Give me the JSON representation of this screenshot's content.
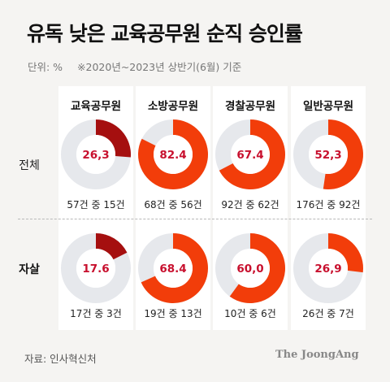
{
  "title": "유독 낮은 교육공무원 순직 승인률",
  "unit_label": "단위: %",
  "period_note": "※2020년~2023년 상반기(6월) 기준",
  "source": "자료: 인사혁신처",
  "logo": "The JoongAng",
  "colors": {
    "low": "#a50f0f",
    "high": "#f23d0a",
    "remainder": "#e6e8ec",
    "value_text": "#c8102e",
    "panel": "#ffffff",
    "background": "#f5f4f2"
  },
  "chart_data": {
    "type": "pie",
    "style": "donut",
    "columns": [
      "교육공무원",
      "소방공무원",
      "경찰공무원",
      "일반공무원"
    ],
    "rows": [
      {
        "label": "전체",
        "cells": [
          {
            "value": 26.3,
            "label": "26,3",
            "caption": "57건 중 15건",
            "color_key": "low"
          },
          {
            "value": 82.4,
            "label": "82.4",
            "caption": "68건 중 56건",
            "color_key": "high"
          },
          {
            "value": 67.4,
            "label": "67.4",
            "caption": "92건 중 62건",
            "color_key": "high"
          },
          {
            "value": 52.3,
            "label": "52,3",
            "caption": "176건 중 92건",
            "color_key": "high"
          }
        ]
      },
      {
        "label": "자살",
        "cells": [
          {
            "value": 17.6,
            "label": "17.6",
            "caption": "17건 중 3건",
            "color_key": "low"
          },
          {
            "value": 68.4,
            "label": "68.4",
            "caption": "19건 중 13건",
            "color_key": "high"
          },
          {
            "value": 60.0,
            "label": "60,0",
            "caption": "10건 중 6건",
            "color_key": "high"
          },
          {
            "value": 26.9,
            "label": "26,9",
            "caption": "26건 중 7건",
            "color_key": "high"
          }
        ]
      }
    ]
  }
}
